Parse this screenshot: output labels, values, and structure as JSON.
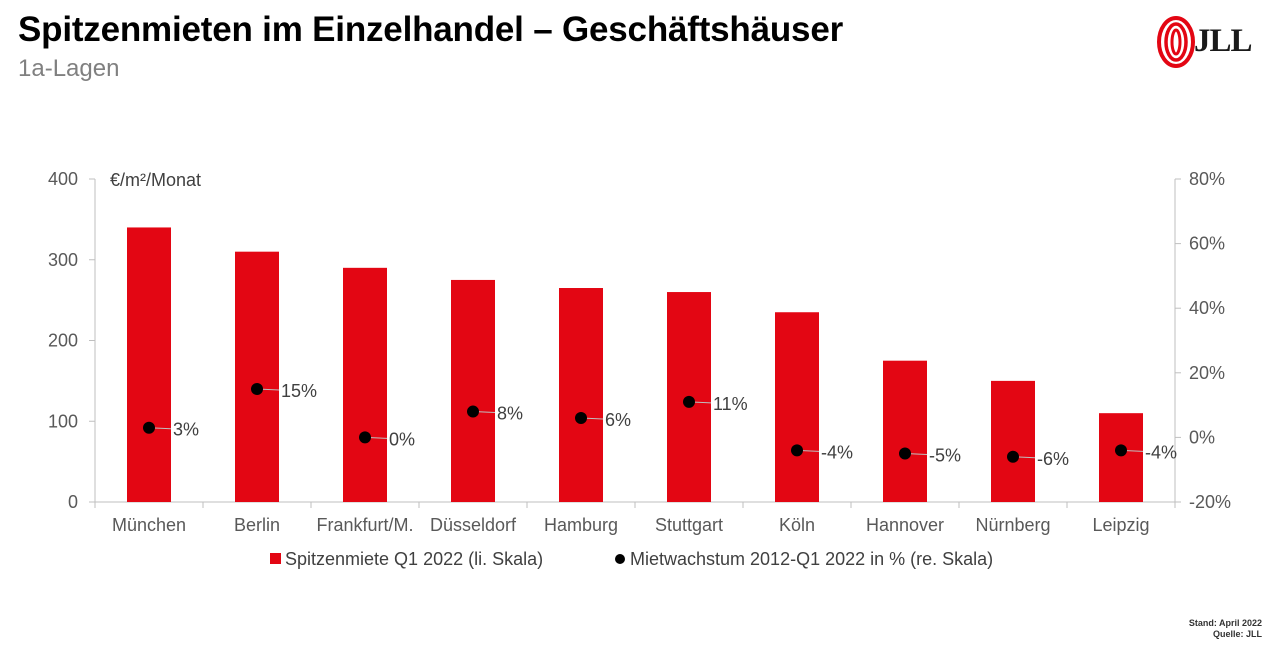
{
  "header": {
    "title": "Spitzenmieten im Einzelhandel – Geschäftshäuser",
    "subtitle": "1a-Lagen"
  },
  "logo": {
    "text": "JLL",
    "icon": "jll-flame-icon"
  },
  "footnote": {
    "stand": "Stand: April 2022",
    "quelle": "Quelle: JLL"
  },
  "colors": {
    "bar": "#e30613",
    "dot": "#000000",
    "axis": "#bfbfbf"
  },
  "chart_data": {
    "type": "bar",
    "title": "",
    "categories": [
      "München",
      "Berlin",
      "Frankfurt/M.",
      "Düsseldorf",
      "Hamburg",
      "Stuttgart",
      "Köln",
      "Hannover",
      "Nürnberg",
      "Leipzig"
    ],
    "y_unit_label": "€/m²/Monat",
    "ylim": [
      0,
      400
    ],
    "y_ticks": [
      "0",
      "100",
      "200",
      "300",
      "400"
    ],
    "y2lim": [
      -20,
      80
    ],
    "y2_ticks": [
      "-20%",
      "0%",
      "20%",
      "40%",
      "60%",
      "80%"
    ],
    "grid": false,
    "legend_position": "bottom",
    "series": [
      {
        "name": "Spitzenmiete Q1 2022 (li. Skala)",
        "type": "bar",
        "axis": "left",
        "values": [
          340,
          310,
          290,
          275,
          265,
          260,
          235,
          175,
          150,
          110
        ]
      },
      {
        "name": "Mietwachstum 2012-Q1 2022 in % (re. Skala)",
        "type": "scatter",
        "axis": "right",
        "values": [
          3,
          15,
          0,
          8,
          6,
          11,
          -4,
          -5,
          -6,
          -4
        ],
        "labels": [
          "3%",
          "15%",
          "0%",
          "8%",
          "6%",
          "11%",
          "-4%",
          "-5%",
          "-6%",
          "-4%"
        ]
      }
    ]
  }
}
